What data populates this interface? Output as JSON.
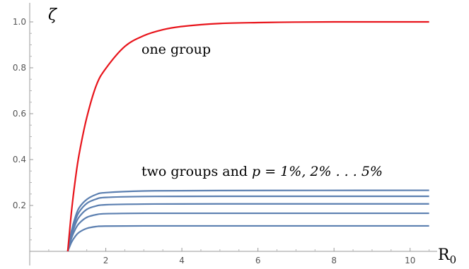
{
  "chart_data": {
    "type": "line",
    "title": "",
    "xlabel": "R",
    "xlabel_subscript": "0",
    "ylabel": "ζ",
    "xlim": [
      0.0,
      10.6
    ],
    "ylim": [
      0.0,
      1.04
    ],
    "x_ticks": [
      2,
      4,
      6,
      8,
      10
    ],
    "x_tick_labels": [
      "2",
      "4",
      "6",
      "8",
      "10"
    ],
    "y_ticks": [
      0.2,
      0.4,
      0.6,
      0.8,
      1.0
    ],
    "y_tick_labels": [
      "0.2",
      "0.4",
      "0.6",
      "0.8",
      "1.0"
    ],
    "grid": false,
    "colors": {
      "one_group": "#e8141b",
      "two_groups": "#5b7fb0"
    },
    "series": [
      {
        "group": "one",
        "color": "#e8141b",
        "x": [
          1.0,
          1.1,
          1.2,
          1.3,
          1.5,
          1.75,
          2.0,
          2.5,
          3.0,
          3.5,
          4.0,
          5.0,
          6.0,
          7.0,
          8.0,
          9.0,
          10.0,
          10.5
        ],
        "y": [
          0.0,
          0.176,
          0.314,
          0.424,
          0.583,
          0.723,
          0.797,
          0.893,
          0.94,
          0.966,
          0.98,
          0.993,
          0.997,
          0.999,
          1.0,
          1.0,
          1.0,
          1.0
        ]
      },
      {
        "group": "two",
        "color": "#5b7fb0",
        "x": [
          1.0,
          1.1,
          1.2,
          1.3,
          1.5,
          1.75,
          2.0,
          3.0,
          5.0,
          10.5
        ],
        "y": [
          0.0,
          0.09,
          0.15,
          0.19,
          0.226,
          0.248,
          0.256,
          0.263,
          0.265,
          0.266
        ]
      },
      {
        "group": "two",
        "color": "#5b7fb0",
        "x": [
          1.0,
          1.1,
          1.2,
          1.3,
          1.5,
          1.75,
          2.0,
          3.0,
          5.0,
          10.5
        ],
        "y": [
          0.0,
          0.08,
          0.135,
          0.172,
          0.209,
          0.228,
          0.235,
          0.239,
          0.24,
          0.24
        ]
      },
      {
        "group": "two",
        "color": "#5b7fb0",
        "x": [
          1.0,
          1.1,
          1.2,
          1.3,
          1.5,
          1.75,
          2.0,
          3.0,
          5.0,
          10.5
        ],
        "y": [
          0.0,
          0.07,
          0.118,
          0.15,
          0.183,
          0.198,
          0.203,
          0.206,
          0.207,
          0.207
        ]
      },
      {
        "group": "two",
        "color": "#5b7fb0",
        "x": [
          1.0,
          1.1,
          1.2,
          1.3,
          1.5,
          1.75,
          2.0,
          3.0,
          5.0,
          10.5
        ],
        "y": [
          0.0,
          0.058,
          0.097,
          0.122,
          0.148,
          0.16,
          0.164,
          0.166,
          0.166,
          0.166
        ]
      },
      {
        "group": "two",
        "color": "#5b7fb0",
        "x": [
          1.0,
          1.1,
          1.2,
          1.3,
          1.5,
          1.75,
          2.0,
          3.0,
          5.0,
          10.5
        ],
        "y": [
          0.0,
          0.04,
          0.066,
          0.083,
          0.1,
          0.108,
          0.11,
          0.111,
          0.111,
          0.111
        ]
      }
    ],
    "annotations": {
      "one_group": "one group",
      "two_groups_prefix": "two groups and ",
      "two_groups_math": "p = 1%, 2% . . . 5%"
    }
  }
}
